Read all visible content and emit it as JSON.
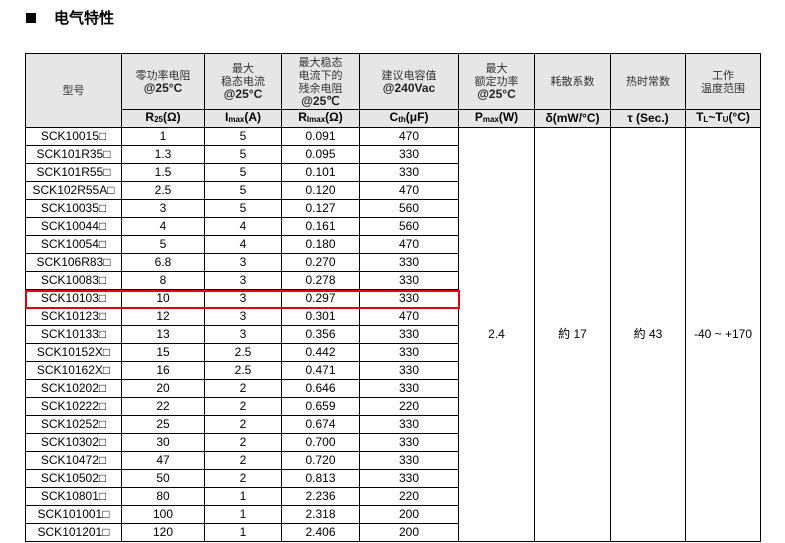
{
  "section_title": "电气特性",
  "headers": [
    {
      "cn": "型号",
      "en": "",
      "unit": ""
    },
    {
      "cn": "零功率电阻",
      "en": "@25°C",
      "unit": "R25(Ω)"
    },
    {
      "cn": "最大 稳态电流",
      "en": "@25°C",
      "unit": "Imax(A)"
    },
    {
      "cn": "最大稳态 电流下的 残余电阻",
      "en": "@25℃",
      "unit": "Rimax(Ω)"
    },
    {
      "cn": "建议电容值",
      "en": "@240Vac",
      "unit": "Cth(μF)"
    },
    {
      "cn": "最大 额定功率",
      "en": "@25°C",
      "unit": "Pmax(W)"
    },
    {
      "cn": "耗散系数",
      "en": "",
      "unit": "δ(mW/°C)"
    },
    {
      "cn": "热时常数",
      "en": "",
      "unit": "τ (Sec.)"
    },
    {
      "cn": "工作 温度范围",
      "en": "",
      "unit": "TL~TU(°C)"
    }
  ],
  "rows": [
    [
      "SCK10015□",
      "1",
      "5",
      "0.091",
      "470"
    ],
    [
      "SCK101R35□",
      "1.3",
      "5",
      "0.095",
      "330"
    ],
    [
      "SCK101R55□",
      "1.5",
      "5",
      "0.101",
      "330"
    ],
    [
      "SCK102R55A□",
      "2.5",
      "5",
      "0.120",
      "470"
    ],
    [
      "SCK10035□",
      "3",
      "5",
      "0.127",
      "560"
    ],
    [
      "SCK10044□",
      "4",
      "4",
      "0.161",
      "560"
    ],
    [
      "SCK10054□",
      "5",
      "4",
      "0.180",
      "470"
    ],
    [
      "SCK106R83□",
      "6.8",
      "3",
      "0.270",
      "330"
    ],
    [
      "SCK10083□",
      "8",
      "3",
      "0.278",
      "330"
    ],
    [
      "SCK10103□",
      "10",
      "3",
      "0.297",
      "330"
    ],
    [
      "SCK10123□",
      "12",
      "3",
      "0.301",
      "470"
    ],
    [
      "SCK10133□",
      "13",
      "3",
      "0.356",
      "330"
    ],
    [
      "SCK10152X□",
      "15",
      "2.5",
      "0.442",
      "330"
    ],
    [
      "SCK10162X□",
      "16",
      "2.5",
      "0.471",
      "330"
    ],
    [
      "SCK10202□",
      "20",
      "2",
      "0.646",
      "330"
    ],
    [
      "SCK10222□",
      "22",
      "2",
      "0.659",
      "220"
    ],
    [
      "SCK10252□",
      "25",
      "2",
      "0.674",
      "330"
    ],
    [
      "SCK10302□",
      "30",
      "2",
      "0.700",
      "330"
    ],
    [
      "SCK10472□",
      "47",
      "2",
      "0.720",
      "330"
    ],
    [
      "SCK10502□",
      "50",
      "2",
      "0.813",
      "330"
    ],
    [
      "SCK10801□",
      "80",
      "1",
      "2.236",
      "220"
    ],
    [
      "SCK101001□",
      "100",
      "1",
      "2.318",
      "200"
    ],
    [
      "SCK101201□",
      "120",
      "1",
      "2.406",
      "200"
    ]
  ],
  "shared": {
    "pmax": "2.4",
    "dissipation": "約 17",
    "tau": "約 43",
    "temp_range": "-40 ~ +170"
  },
  "highlighted_row": "SCK10103□",
  "highlight_color": "#e00010"
}
